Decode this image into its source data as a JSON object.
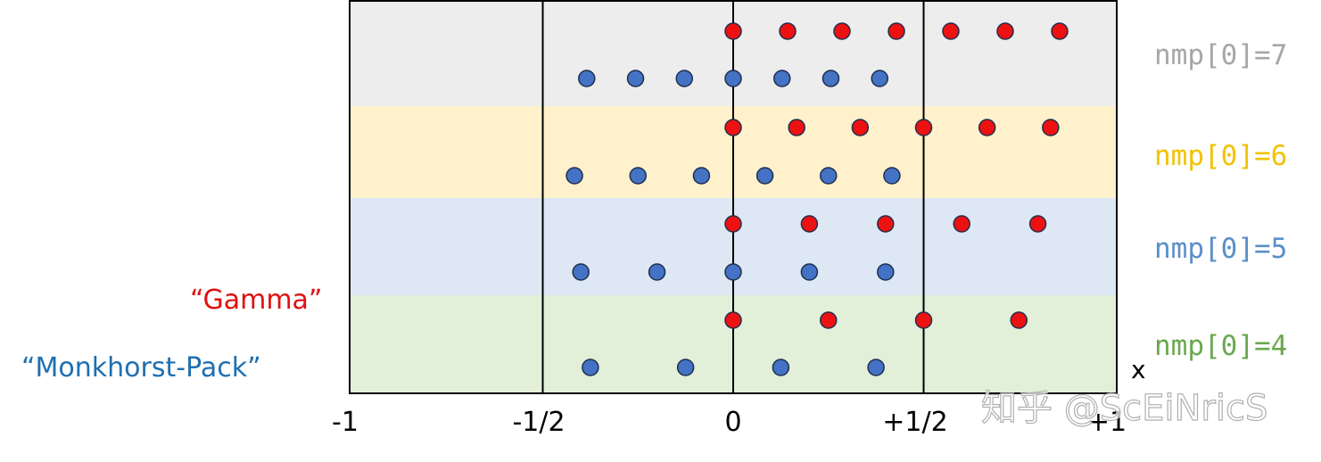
{
  "x_axis": {
    "variable": "x",
    "range": [
      -1,
      1
    ],
    "ticks": [
      {
        "value": -1,
        "label": "-1"
      },
      {
        "value": -0.5,
        "label": "-1/2"
      },
      {
        "value": 0,
        "label": "0"
      },
      {
        "value": 0.5,
        "label": "+1/2"
      },
      {
        "value": 1,
        "label": "+1"
      }
    ]
  },
  "series_labels": {
    "gamma": {
      "text": "“Gamma”",
      "color": "#e01010"
    },
    "monkhorst_pack": {
      "text": "“Monkhorst-Pack”",
      "color": "#1f6fb0"
    }
  },
  "marker_colors": {
    "gamma": "#ee1111",
    "monkhorst_pack": "#4472c4",
    "outline": "#1f2f4f"
  },
  "bands": [
    {
      "label": "nmp[0]=7",
      "label_color": "#a6a6a6",
      "fill": "#ededed",
      "gamma": [
        0,
        0.1429,
        0.2857,
        0.4286,
        0.5714,
        0.7143,
        0.8571
      ],
      "monkhorst_pack": [
        -0.3846,
        -0.2564,
        -0.1282,
        0,
        0.1282,
        0.2564,
        0.3846
      ]
    },
    {
      "label": "nmp[0]=6",
      "label_color": "#f2c200",
      "fill": "#fff1cc",
      "gamma": [
        0,
        0.1667,
        0.3333,
        0.5,
        0.6667,
        0.8333
      ],
      "monkhorst_pack": [
        -0.4167,
        -0.25,
        -0.0833,
        0.0833,
        0.25,
        0.4167
      ]
    },
    {
      "label": "nmp[0]=5",
      "label_color": "#5b8fc9",
      "fill": "#dde8f4",
      "gamma": [
        0,
        0.2,
        0.4,
        0.6,
        0.8
      ],
      "monkhorst_pack": [
        -0.4,
        -0.2,
        0,
        0.2,
        0.4
      ]
    },
    {
      "label": "nmp[0]=4",
      "label_color": "#6aa84f",
      "fill": "#e2efd9",
      "gamma": [
        0,
        0.25,
        0.5,
        0.75
      ],
      "monkhorst_pack": [
        -0.375,
        -0.125,
        0.125,
        0.375
      ]
    }
  ],
  "watermark": "知乎 @ScEiNricS"
}
